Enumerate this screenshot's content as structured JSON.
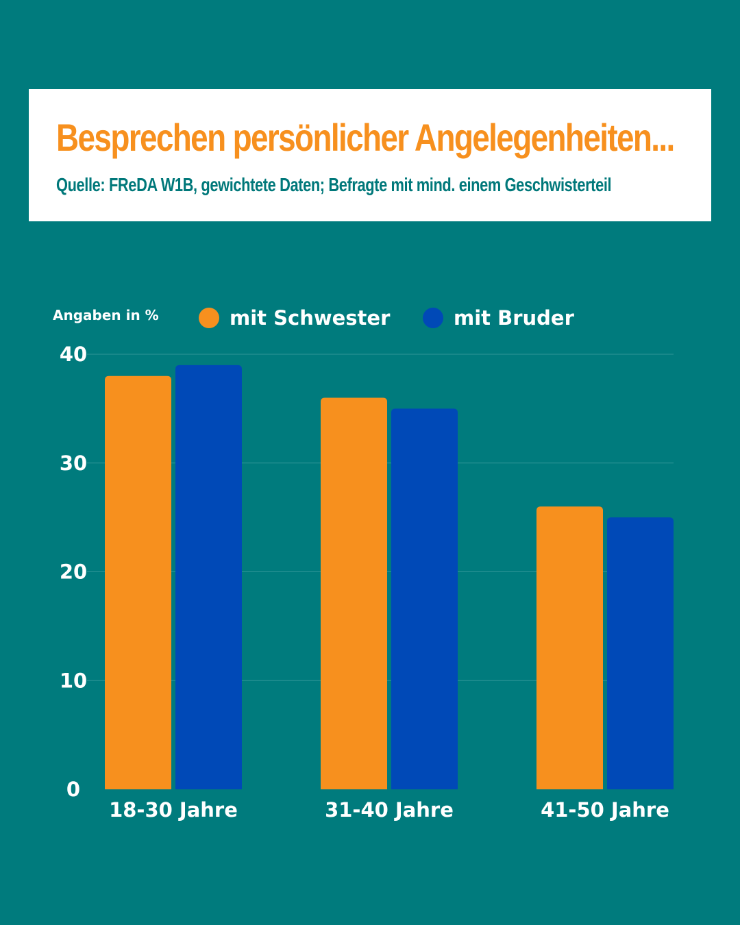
{
  "header": {
    "title": "Besprechen persönlicher Angelegenheiten...",
    "subtitle": "Quelle:  FReDA W1B, gewichtete Daten; Befragte mit mind. einem Geschwisterteil"
  },
  "colors": {
    "background": "#007b7d",
    "title": "#f7901e",
    "subtitle": "#00787a",
    "series_schwester": "#f7901e",
    "series_bruder": "#0049b7"
  },
  "chart_data": {
    "type": "bar",
    "unit_label": "Angaben in %",
    "categories": [
      "18-30 Jahre",
      "31-40 Jahre",
      "41-50 Jahre"
    ],
    "series": [
      {
        "name": "mit Schwester",
        "color": "#f7901e",
        "values": [
          38,
          36,
          26
        ]
      },
      {
        "name": "mit Bruder",
        "color": "#0049b7",
        "values": [
          39,
          35,
          25
        ]
      }
    ],
    "ylim": [
      0,
      40
    ],
    "yticks": [
      "0",
      "10",
      "20",
      "30",
      "40"
    ],
    "grid": true,
    "legend_position": "top"
  }
}
